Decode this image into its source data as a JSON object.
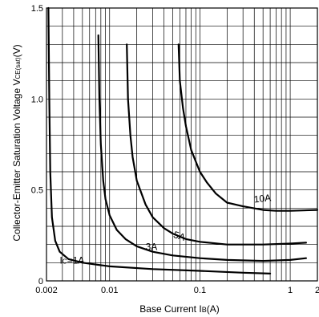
{
  "chart_data": {
    "type": "line",
    "xscale": "log",
    "xlim": [
      0.002,
      2
    ],
    "ylim": [
      0,
      1.5
    ],
    "xlabel": "Base Current",
    "xlabel_sym": "I",
    "xlabel_sub": "B",
    "xlabel_unit": "(A)",
    "ylabel": "Collector-Emitter Saturation Voltage V",
    "ylabel_sub": "CE(sat)",
    "ylabel_unit": "(V)",
    "x_ticks": [
      {
        "value": 0.002,
        "label": "0.002"
      },
      {
        "value": 0.01,
        "label": "0.01"
      },
      {
        "value": 0.1,
        "label": "0.1"
      },
      {
        "value": 1,
        "label": "1"
      },
      {
        "value": 2,
        "label": "2"
      }
    ],
    "y_ticks": [
      {
        "value": 0,
        "label": "0"
      },
      {
        "value": 0.5,
        "label": "0.5"
      },
      {
        "value": 1.0,
        "label": "1.0"
      },
      {
        "value": 1.5,
        "label": "1.5"
      }
    ],
    "y_grid_step": 0.1,
    "grid": true,
    "series": [
      {
        "name": "1A",
        "label": "IC=1A",
        "label_sym": "I",
        "label_sub": "C",
        "label_rest": "=1A",
        "x": [
          0.0021,
          0.00215,
          0.0022,
          0.0023,
          0.0025,
          0.0028,
          0.0035,
          0.005,
          0.01,
          0.03,
          0.1,
          0.3,
          0.6
        ],
        "y": [
          1.5,
          1.0,
          0.6,
          0.35,
          0.22,
          0.16,
          0.12,
          0.1,
          0.08,
          0.065,
          0.055,
          0.045,
          0.04
        ]
      },
      {
        "name": "3A",
        "label": "3A",
        "x": [
          0.0075,
          0.0077,
          0.008,
          0.0085,
          0.009,
          0.01,
          0.012,
          0.015,
          0.02,
          0.03,
          0.05,
          0.1,
          0.2,
          0.5,
          1.0,
          1.5
        ],
        "y": [
          1.35,
          1.0,
          0.75,
          0.55,
          0.45,
          0.36,
          0.28,
          0.23,
          0.19,
          0.16,
          0.14,
          0.125,
          0.115,
          0.11,
          0.115,
          0.125
        ]
      },
      {
        "name": "5A",
        "label": "5A",
        "x": [
          0.0155,
          0.016,
          0.017,
          0.018,
          0.02,
          0.025,
          0.03,
          0.04,
          0.05,
          0.07,
          0.1,
          0.2,
          0.5,
          1.0,
          1.5
        ],
        "y": [
          1.3,
          1.0,
          0.8,
          0.68,
          0.55,
          0.42,
          0.35,
          0.29,
          0.26,
          0.23,
          0.215,
          0.2,
          0.2,
          0.205,
          0.21
        ]
      },
      {
        "name": "10A",
        "label": "10A",
        "x": [
          0.058,
          0.06,
          0.065,
          0.07,
          0.08,
          0.1,
          0.12,
          0.15,
          0.2,
          0.3,
          0.5,
          0.7,
          1.0,
          2.0
        ],
        "y": [
          1.3,
          1.1,
          0.95,
          0.85,
          0.72,
          0.6,
          0.54,
          0.48,
          0.43,
          0.41,
          0.39,
          0.385,
          0.385,
          0.39
        ]
      }
    ]
  }
}
